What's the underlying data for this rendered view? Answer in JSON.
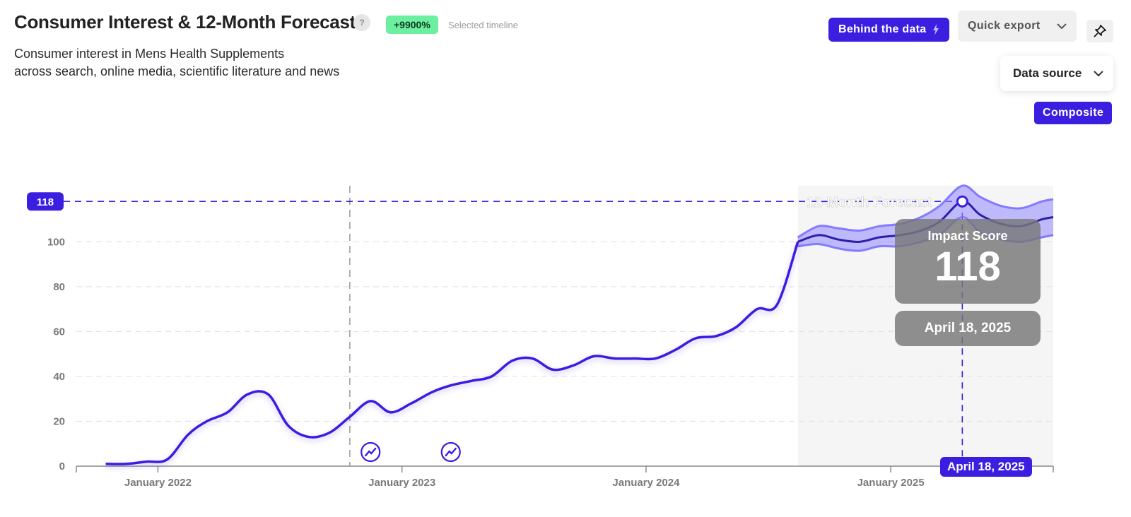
{
  "header": {
    "title": "Consumer Interest & 12-Month Forecast",
    "help_label": "?",
    "growth_badge": "+9900%",
    "timeline_note": "Selected timeline",
    "subtitle_line1": "Consumer interest in Mens Health Supplements",
    "subtitle_line2": "across search, online media, scientific literature and news"
  },
  "toolbar": {
    "behind_label": "Behind the data",
    "export_label": "Quick export",
    "data_source_label": "Data source",
    "composite_label": "Composite"
  },
  "colors": {
    "accent": "#3b1fe0",
    "badge_green": "#6cf0a0",
    "forecast_band": "#8f86ff"
  },
  "icons": {
    "help": "question-icon",
    "behind": "bolt-icon",
    "export": "chevron-down-icon",
    "pin": "pin-icon",
    "source": "chevron-down-icon",
    "event": "trend-event-icon"
  },
  "tooltip": {
    "label": "Impact Score",
    "value": "118",
    "date": "April 18, 2025"
  },
  "chart_data": {
    "type": "line",
    "title": "",
    "xlabel": "",
    "ylabel": "",
    "ylim": [
      0,
      125
    ],
    "yticks": [
      0,
      20,
      40,
      60,
      80,
      100
    ],
    "y_tick_labels": [
      "0",
      "20",
      "40",
      "60",
      "80",
      "100"
    ],
    "xlim": [
      "2021-09-01",
      "2025-09-01"
    ],
    "x_tick_labels": [
      "January 2022",
      "January 2023",
      "January 2024",
      "January 2025"
    ],
    "x_tick_dates": [
      "2022-01-01",
      "2023-01-01",
      "2024-01-01",
      "2025-01-01"
    ],
    "grid": true,
    "forecast_label": "12-Month Forecast",
    "forecast_start": "2024-08-15",
    "reference_value": 118,
    "reference_label": "118",
    "selected_date": "2025-04-18",
    "selected_date_label": "April 18, 2025",
    "timeline_marker_date": "2022-10-15",
    "event_dates": [
      "2022-11-15",
      "2023-03-15"
    ],
    "series": [
      {
        "kind": "historical",
        "x": [
          "2021-10-15",
          "2021-11-15",
          "2021-12-15",
          "2022-01-15",
          "2022-02-15",
          "2022-03-15",
          "2022-04-15",
          "2022-05-15",
          "2022-06-15",
          "2022-07-15",
          "2022-08-15",
          "2022-09-15",
          "2022-10-15",
          "2022-11-15",
          "2022-12-15",
          "2023-01-15",
          "2023-02-15",
          "2023-03-15",
          "2023-04-15",
          "2023-05-15",
          "2023-06-15",
          "2023-07-15",
          "2023-08-15",
          "2023-09-15",
          "2023-10-15",
          "2023-11-15",
          "2023-12-15",
          "2024-01-15",
          "2024-02-15",
          "2024-03-15",
          "2024-04-15",
          "2024-05-15",
          "2024-06-15",
          "2024-07-15",
          "2024-08-15"
        ],
        "y": [
          1,
          1,
          2,
          3,
          14,
          20,
          24,
          32,
          32,
          18,
          13,
          15,
          22,
          29,
          24,
          28,
          33,
          36,
          38,
          40,
          47,
          48,
          43,
          45,
          49,
          48,
          48,
          48,
          52,
          57,
          58,
          62,
          70,
          72,
          100
        ]
      },
      {
        "kind": "forecast",
        "x": [
          "2024-08-15",
          "2024-09-15",
          "2024-10-15",
          "2024-11-15",
          "2024-12-15",
          "2025-01-15",
          "2025-02-15",
          "2025-03-15",
          "2025-04-18",
          "2025-05-15",
          "2025-06-15",
          "2025-07-15",
          "2025-08-15",
          "2025-09-01"
        ],
        "y": [
          100,
          103,
          101,
          100,
          102,
          103,
          105,
          109,
          118,
          112,
          108,
          107,
          110,
          111
        ],
        "lower": [
          98,
          99,
          97,
          96,
          98,
          98,
          100,
          103,
          111,
          104,
          101,
          100,
          102,
          103
        ],
        "upper": [
          102,
          107,
          106,
          105,
          107,
          108,
          111,
          116,
          125,
          120,
          116,
          115,
          118,
          119
        ]
      }
    ]
  }
}
